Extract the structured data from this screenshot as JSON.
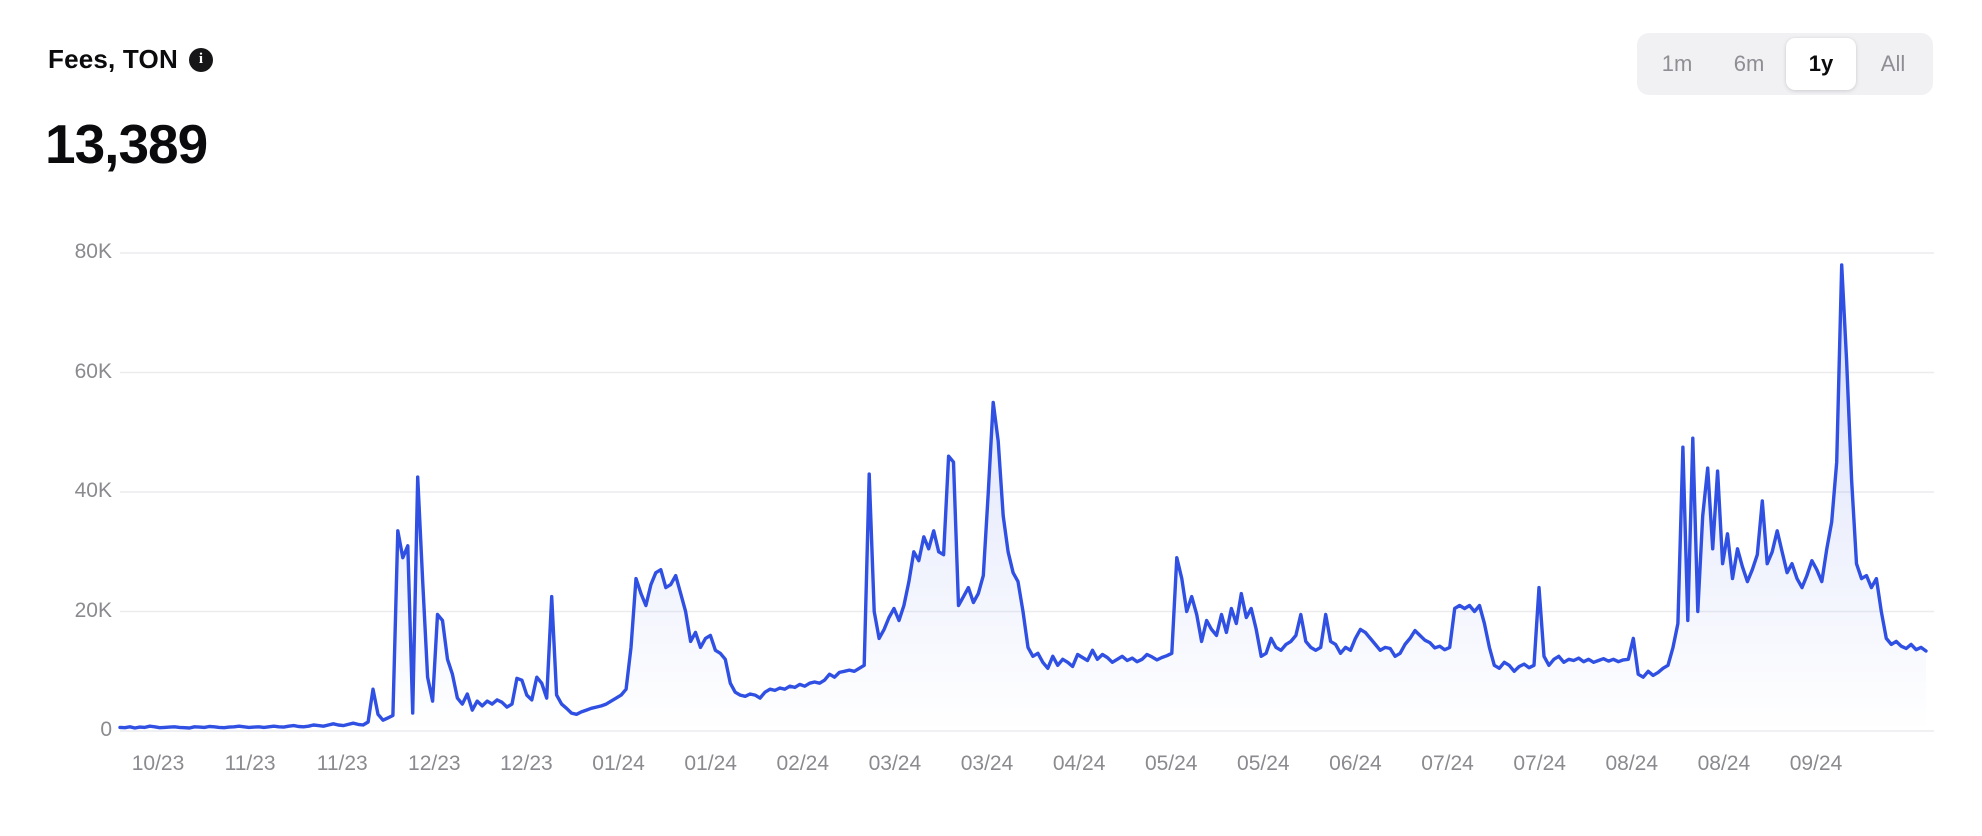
{
  "header": {
    "title": "Fees, TON",
    "value": "13,389",
    "info_glyph": "i"
  },
  "range_selector": {
    "options": [
      {
        "label": "1m",
        "active": false
      },
      {
        "label": "6m",
        "active": false
      },
      {
        "label": "1y",
        "active": true
      },
      {
        "label": "All",
        "active": false
      }
    ]
  },
  "chart_data": {
    "type": "area",
    "title": "Fees, TON",
    "current_value": 13389,
    "unit": "TON",
    "ylim": [
      0,
      80000
    ],
    "y_ticks": [
      "80K",
      "60K",
      "40K",
      "20K",
      "0"
    ],
    "y_tick_values": [
      80000,
      60000,
      40000,
      20000,
      0
    ],
    "x_tick_labels": [
      "10/23",
      "11/23",
      "11/23",
      "12/23",
      "12/23",
      "01/24",
      "01/24",
      "02/24",
      "03/24",
      "03/24",
      "04/24",
      "05/24",
      "05/24",
      "06/24",
      "07/24",
      "07/24",
      "08/24",
      "08/24",
      "09/24"
    ],
    "grid": true,
    "legend": false,
    "line_color": "#2f50e2",
    "fill_color": "#2f50e2",
    "area_opacity_top": 0.2,
    "area_opacity_bottom": 0.0,
    "grid_color": "#ececef",
    "axis_label_color": "#8a8a8f",
    "series": [
      {
        "name": "Fees",
        "values": [
          600,
          550,
          700,
          500,
          650,
          600,
          800,
          700,
          550,
          600,
          650,
          700,
          600,
          550,
          500,
          700,
          650,
          600,
          750,
          700,
          600,
          550,
          650,
          700,
          800,
          700,
          600,
          650,
          700,
          600,
          700,
          800,
          700,
          650,
          800,
          900,
          750,
          700,
          800,
          1000,
          900,
          800,
          1000,
          1200,
          1000,
          900,
          1100,
          1300,
          1100,
          1000,
          1500,
          7000,
          2800,
          1800,
          2200,
          2600,
          33500,
          29000,
          31000,
          3000,
          42500,
          25000,
          9000,
          5000,
          19500,
          18500,
          12000,
          9500,
          5500,
          4500,
          6200,
          3500,
          5000,
          4200,
          5000,
          4500,
          5200,
          4800,
          4000,
          4500,
          8800,
          8500,
          6000,
          5200,
          9000,
          8000,
          5500,
          22500,
          6000,
          4500,
          3800,
          3000,
          2800,
          3200,
          3500,
          3800,
          4000,
          4200,
          4500,
          5000,
          5500,
          6000,
          7000,
          14000,
          25500,
          23000,
          21000,
          24500,
          26500,
          27000,
          24000,
          24500,
          26000,
          23000,
          20000,
          15000,
          16500,
          14000,
          15500,
          16000,
          13500,
          13000,
          12000,
          8000,
          6500,
          6000,
          5800,
          6200,
          6000,
          5500,
          6500,
          7000,
          6800,
          7200,
          7000,
          7500,
          7300,
          7800,
          7500,
          8000,
          8200,
          8000,
          8500,
          9500,
          9000,
          9800,
          10000,
          10200,
          10000,
          10500,
          11000,
          43000,
          20000,
          15500,
          17000,
          19000,
          20500,
          18500,
          21000,
          25000,
          30000,
          28500,
          32500,
          30500,
          33500,
          30000,
          29500,
          46000,
          45000,
          21000,
          22500,
          24000,
          21500,
          23000,
          26000,
          40000,
          55000,
          48500,
          36000,
          30000,
          26500,
          25000,
          20000,
          14000,
          12500,
          13000,
          11500,
          10500,
          12500,
          11000,
          12000,
          11500,
          10800,
          12800,
          12300,
          11800,
          13500,
          12000,
          12800,
          12300,
          11500,
          12000,
          12500,
          11800,
          12200,
          11600,
          12000,
          12800,
          12400,
          11900,
          12300,
          12600,
          13000,
          29000,
          25500,
          20000,
          22500,
          19500,
          15000,
          18500,
          17000,
          16000,
          19500,
          16500,
          20500,
          18000,
          23000,
          19000,
          20500,
          17000,
          12500,
          13000,
          15500,
          14000,
          13500,
          14500,
          15000,
          16000,
          19500,
          15000,
          14000,
          13500,
          14000,
          19500,
          15000,
          14500,
          13000,
          14000,
          13500,
          15500,
          17000,
          16500,
          15500,
          14500,
          13500,
          14000,
          13800,
          12500,
          13000,
          14500,
          15500,
          16800,
          16000,
          15200,
          14800,
          13900,
          14200,
          13600,
          14000,
          20500,
          21000,
          20500,
          21000,
          20000,
          21000,
          18000,
          14000,
          11000,
          10500,
          11500,
          11000,
          10000,
          10800,
          11200,
          10600,
          11000,
          24000,
          12500,
          11000,
          12000,
          12500,
          11500,
          12000,
          11800,
          12200,
          11600,
          12000,
          11500,
          11800,
          12100,
          11700,
          12000,
          11600,
          11900,
          12000,
          15500,
          9500,
          9000,
          10000,
          9300,
          9800,
          10500,
          11000,
          14000,
          18000,
          47500,
          18500,
          49000,
          20000,
          36000,
          44000,
          30500,
          43500,
          28000,
          33000,
          25500,
          30500,
          27500,
          25000,
          27000,
          29500,
          38500,
          28000,
          30000,
          33500,
          30000,
          26500,
          28000,
          25500,
          24000,
          26000,
          28500,
          27000,
          25000,
          30500,
          35000,
          45000,
          78000,
          62000,
          42000,
          28000,
          25500,
          26000,
          24000,
          25500,
          20000,
          15500,
          14500,
          15000,
          14200,
          13800,
          14500,
          13600,
          14000,
          13389
        ]
      }
    ]
  }
}
